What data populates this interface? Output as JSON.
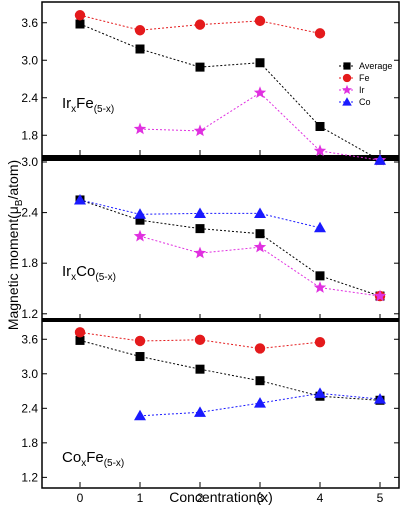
{
  "ylabel_main": "Magnetic moment(μ",
  "ylabel_sub": "B",
  "ylabel_end": "/atom)",
  "xlabel": "Concentration(x)",
  "x_ticks": [
    "0",
    "1",
    "2",
    "3",
    "4",
    "5"
  ],
  "colors": {
    "Average": "#000000",
    "Fe": "#e41a1c",
    "Ir": "#e030e0",
    "Co": "#1a1aff"
  },
  "chart_data": [
    {
      "type": "line",
      "panel_label": {
        "main1": "Ir",
        "sub1": "x",
        "main2": "Fe",
        "sub2": "(5-x)"
      },
      "ylim": [
        1.5,
        3.9
      ],
      "yticks": [
        "1.8",
        "2.4",
        "3.0",
        "3.6"
      ],
      "legend": {
        "placement": "right",
        "entries": [
          "Average",
          "Fe",
          "Ir",
          "Co"
        ]
      },
      "series": [
        {
          "name": "Average",
          "marker": "square",
          "x": [
            0,
            1,
            2,
            3,
            4,
            5
          ],
          "values": [
            3.58,
            3.18,
            2.89,
            2.96,
            1.94,
            1.4
          ]
        },
        {
          "name": "Fe",
          "marker": "circle",
          "x": [
            0,
            1,
            2,
            3,
            4
          ],
          "values": [
            3.72,
            3.48,
            3.57,
            3.63,
            3.43
          ]
        },
        {
          "name": "Ir",
          "marker": "star",
          "x": [
            1,
            2,
            3,
            4,
            5
          ],
          "values": [
            1.9,
            1.87,
            2.48,
            1.55,
            1.4
          ]
        },
        {
          "name": "Co",
          "marker": "triangle",
          "x": [
            5
          ],
          "values": [
            1.4
          ]
        }
      ]
    },
    {
      "type": "line",
      "panel_label": {
        "main1": "Ir",
        "sub1": "x",
        "main2": "Co",
        "sub2": "(5-x)"
      },
      "ylim": [
        1.15,
        3.0
      ],
      "yticks": [
        "1.2",
        "1.8",
        "2.4",
        "3.0"
      ],
      "series": [
        {
          "name": "Average",
          "marker": "square",
          "x": [
            0,
            1,
            2,
            3,
            4,
            5
          ],
          "values": [
            2.55,
            2.31,
            2.21,
            2.15,
            1.65,
            1.41
          ]
        },
        {
          "name": "Fe",
          "marker": "circle",
          "x": [
            5
          ],
          "values": [
            1.41
          ]
        },
        {
          "name": "Ir",
          "marker": "star",
          "x": [
            1,
            2,
            3,
            4,
            5
          ],
          "values": [
            2.12,
            1.92,
            1.99,
            1.51,
            1.41
          ]
        },
        {
          "name": "Co",
          "marker": "triangle",
          "x": [
            0,
            1,
            2,
            3,
            4
          ],
          "values": [
            2.55,
            2.38,
            2.39,
            2.39,
            2.22
          ]
        }
      ]
    },
    {
      "type": "line",
      "panel_label": {
        "main1": "Co",
        "sub1": "x",
        "main2": "Fe",
        "sub2": "(5-x)"
      },
      "ylim": [
        1.05,
        3.9
      ],
      "yticks": [
        "1.2",
        "1.8",
        "2.4",
        "3.0",
        "3.6"
      ],
      "series": [
        {
          "name": "Average",
          "marker": "square",
          "x": [
            0,
            1,
            2,
            3,
            4,
            5
          ],
          "values": [
            3.58,
            3.3,
            3.08,
            2.88,
            2.61,
            2.54
          ]
        },
        {
          "name": "Fe",
          "marker": "circle",
          "x": [
            0,
            1,
            2,
            3,
            4
          ],
          "values": [
            3.72,
            3.57,
            3.59,
            3.44,
            3.55
          ]
        },
        {
          "name": "Co",
          "marker": "triangle",
          "x": [
            1,
            2,
            3,
            4,
            5
          ],
          "values": [
            2.27,
            2.33,
            2.49,
            2.66,
            2.56
          ]
        }
      ]
    }
  ]
}
